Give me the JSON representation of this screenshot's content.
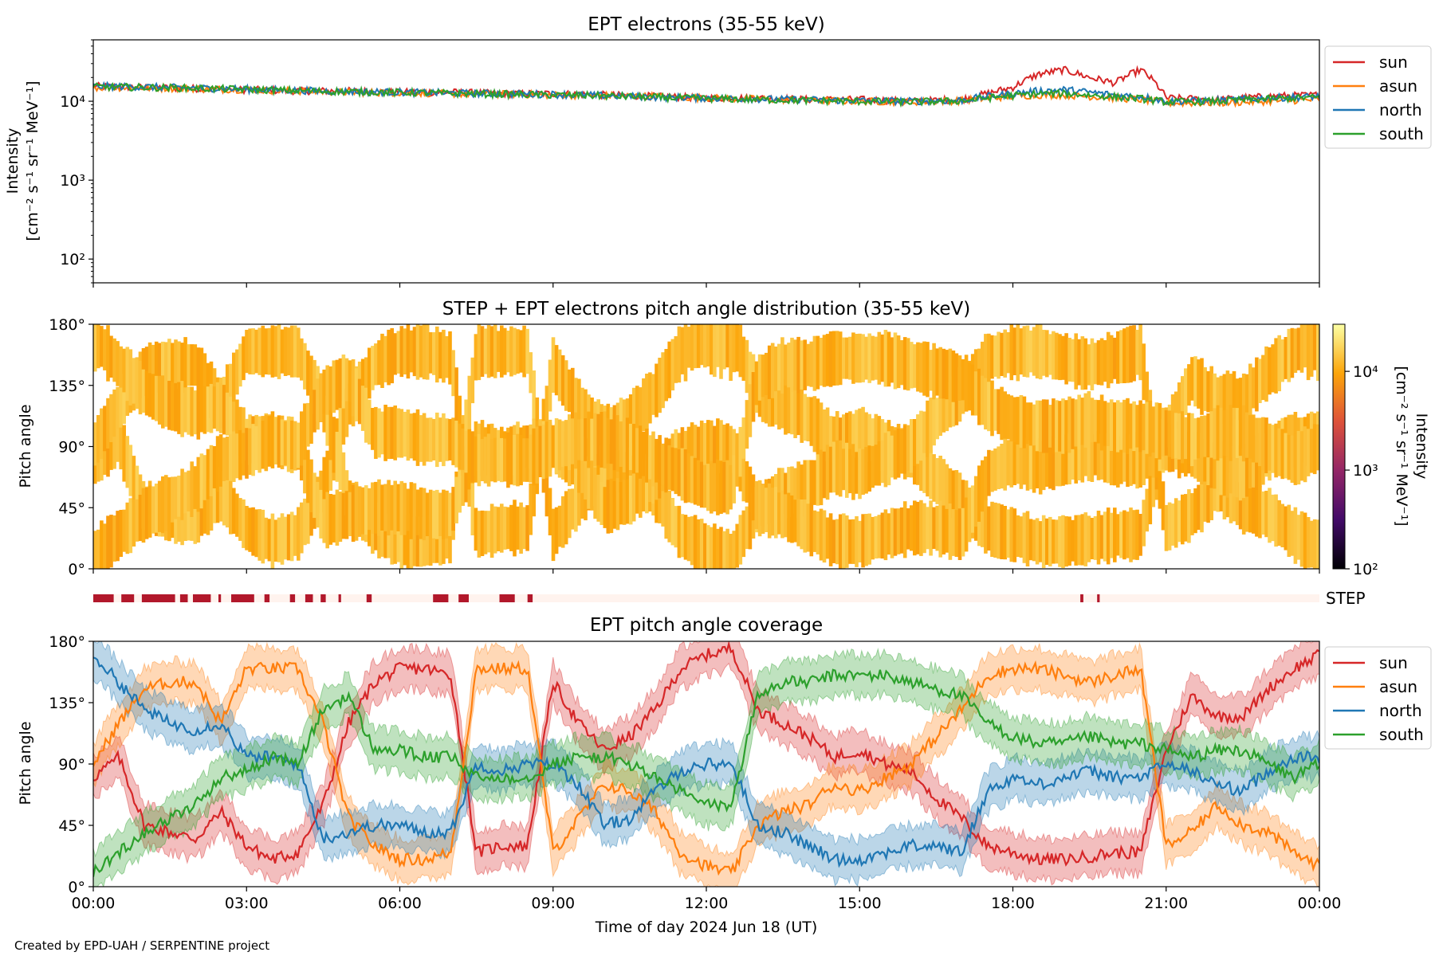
{
  "credit": "Created by EPD-UAH / SERPENTINE project",
  "legend_series": [
    {
      "name": "sun",
      "color": "#d62728"
    },
    {
      "name": "asun",
      "color": "#ff7f0e"
    },
    {
      "name": "north",
      "color": "#1f77b4"
    },
    {
      "name": "south",
      "color": "#2ca02c"
    }
  ],
  "chart_data": [
    {
      "type": "line",
      "title": "EPT electrons (35-55 keV)",
      "ylabel_line1": "Intensity",
      "ylabel_line2": "[cm⁻² s⁻¹ sr⁻¹ MeV⁻¹]",
      "yscale": "log",
      "ylim": [
        50,
        60000
      ],
      "yticks": [
        {
          "value": 100,
          "label": "10²"
        },
        {
          "value": 1000,
          "label": "10³"
        },
        {
          "value": 10000,
          "label": "10⁴"
        }
      ],
      "xlim_hours": [
        0,
        24
      ],
      "legend": "outside-right-top",
      "x_hours": [
        0,
        1,
        2,
        3,
        4,
        5,
        6,
        7,
        8,
        9,
        10,
        11,
        12,
        13,
        14,
        15,
        16,
        17,
        17.5,
        18,
        18.5,
        19,
        19.5,
        20,
        20.5,
        21,
        22,
        23,
        24
      ],
      "series": [
        {
          "name": "sun",
          "color": "#d62728",
          "values": [
            15500,
            15000,
            14500,
            14000,
            13500,
            13500,
            13000,
            13000,
            12500,
            12500,
            12000,
            11500,
            11000,
            11000,
            10500,
            10500,
            10000,
            10500,
            12500,
            15000,
            22000,
            25000,
            20000,
            17000,
            25000,
            11000,
            10500,
            11500,
            12000
          ]
        },
        {
          "name": "asun",
          "color": "#ff7f0e",
          "values": [
            15000,
            14800,
            14500,
            14000,
            13500,
            13000,
            12800,
            12500,
            12300,
            12000,
            11800,
            11500,
            11000,
            10700,
            10300,
            10000,
            9800,
            10200,
            11000,
            11500,
            12000,
            12000,
            11500,
            11000,
            10500,
            9500,
            9500,
            10000,
            10500
          ]
        },
        {
          "name": "north",
          "color": "#1f77b4",
          "values": [
            15500,
            15200,
            14700,
            14200,
            13700,
            13300,
            13000,
            12700,
            12400,
            12200,
            11800,
            11300,
            11000,
            10700,
            10400,
            10200,
            10000,
            10300,
            11500,
            12500,
            13500,
            14000,
            13000,
            12000,
            11500,
            10000,
            10200,
            11000,
            11500
          ]
        },
        {
          "name": "south",
          "color": "#2ca02c",
          "values": [
            15200,
            15000,
            14600,
            14100,
            13600,
            13200,
            12900,
            12600,
            12300,
            12000,
            11700,
            11200,
            10800,
            10500,
            10200,
            10000,
            9800,
            10100,
            11000,
            11800,
            12500,
            12500,
            12000,
            11300,
            10800,
            9800,
            10000,
            10700,
            11200
          ]
        }
      ]
    },
    {
      "type": "heatmap",
      "title": "STEP + EPT electrons pitch angle distribution (35-55 keV)",
      "ylabel": "Pitch angle",
      "ylim": [
        0,
        180
      ],
      "yticks": [
        "0°",
        "45°",
        "90°",
        "135°",
        "180°"
      ],
      "colorbar": {
        "label_line1": "Intensity",
        "label_line2": "[cm⁻² s⁻¹ sr⁻¹ MeV⁻¹]",
        "scale": "log",
        "range": [
          100,
          30000
        ],
        "ticks": [
          {
            "value": 100,
            "label": "10²"
          },
          {
            "value": 1000,
            "label": "10³"
          },
          {
            "value": 10000,
            "label": "10⁴"
          }
        ],
        "colors": [
          "#000004",
          "#420a68",
          "#932667",
          "#dd513a",
          "#fca50a",
          "#fcffa4"
        ]
      },
      "typical_intensity": 12000
    },
    {
      "type": "bar",
      "label": "STEP",
      "coverage_color": "#b2182b",
      "background_color": "#fff3ee",
      "intervals_hours": [
        [
          0.0,
          0.4
        ],
        [
          0.55,
          0.8
        ],
        [
          0.95,
          1.6
        ],
        [
          1.7,
          1.85
        ],
        [
          1.95,
          2.3
        ],
        [
          2.45,
          2.5
        ],
        [
          2.7,
          3.15
        ],
        [
          3.35,
          3.45
        ],
        [
          3.85,
          3.95
        ],
        [
          4.15,
          4.3
        ],
        [
          4.45,
          4.55
        ],
        [
          4.8,
          4.85
        ],
        [
          5.35,
          5.45
        ],
        [
          6.65,
          6.95
        ],
        [
          7.15,
          7.35
        ],
        [
          7.95,
          8.25
        ],
        [
          8.5,
          8.6
        ],
        [
          19.32,
          19.38
        ],
        [
          19.65,
          19.7
        ]
      ]
    },
    {
      "type": "line",
      "title": "EPT pitch angle coverage",
      "ylabel": "Pitch angle",
      "ylim": [
        0,
        180
      ],
      "yticks": [
        "0°",
        "45°",
        "90°",
        "135°",
        "180°"
      ],
      "xlabel": "Time of day 2024 Jun 18 (UT)",
      "xtick_labels": [
        "00:00",
        "03:00",
        "06:00",
        "09:00",
        "12:00",
        "15:00",
        "18:00",
        "21:00",
        "00:00"
      ],
      "xlim_hours": [
        0,
        24
      ],
      "legend": "outside-right-top",
      "band_halfwidth_deg": 15,
      "x_hours": [
        0,
        0.5,
        1,
        1.5,
        2,
        2.5,
        3,
        3.5,
        4,
        4.5,
        5,
        5.5,
        6,
        6.5,
        7,
        7.5,
        8,
        8.5,
        9,
        9.5,
        10,
        10.5,
        11,
        11.5,
        12,
        12.5,
        13,
        13.5,
        14,
        14.5,
        15,
        15.5,
        16,
        16.5,
        17,
        17.5,
        18,
        18.5,
        19,
        19.5,
        20,
        20.5,
        21,
        21.5,
        22,
        22.5,
        23,
        23.5,
        24
      ],
      "series": [
        {
          "name": "sun",
          "color": "#d62728",
          "values": [
            80,
            95,
            45,
            40,
            35,
            55,
            30,
            20,
            25,
            60,
            120,
            150,
            160,
            160,
            155,
            25,
            30,
            30,
            150,
            120,
            100,
            110,
            130,
            160,
            170,
            175,
            130,
            120,
            110,
            95,
            100,
            90,
            85,
            65,
            50,
            30,
            25,
            20,
            20,
            22,
            25,
            25,
            100,
            140,
            125,
            125,
            145,
            160,
            170
          ]
        },
        {
          "name": "asun",
          "color": "#ff7f0e",
          "values": [
            90,
            120,
            145,
            150,
            150,
            120,
            160,
            160,
            160,
            120,
            50,
            30,
            20,
            20,
            25,
            160,
            160,
            160,
            25,
            50,
            75,
            70,
            55,
            25,
            15,
            10,
            45,
            55,
            60,
            75,
            70,
            80,
            90,
            110,
            130,
            155,
            160,
            160,
            155,
            150,
            155,
            160,
            30,
            40,
            60,
            45,
            40,
            25,
            15
          ]
        },
        {
          "name": "north",
          "color": "#1f77b4",
          "values": [
            170,
            150,
            130,
            120,
            115,
            120,
            95,
            95,
            90,
            35,
            40,
            45,
            45,
            40,
            40,
            90,
            85,
            90,
            90,
            75,
            45,
            50,
            70,
            85,
            90,
            90,
            45,
            40,
            30,
            20,
            20,
            25,
            30,
            30,
            25,
            70,
            80,
            75,
            80,
            85,
            80,
            80,
            90,
            85,
            75,
            70,
            85,
            95,
            95
          ]
        },
        {
          "name": "south",
          "color": "#2ca02c",
          "values": [
            10,
            25,
            40,
            50,
            60,
            80,
            85,
            95,
            90,
            130,
            140,
            100,
            100,
            95,
            95,
            80,
            80,
            80,
            90,
            95,
            95,
            90,
            80,
            70,
            60,
            60,
            140,
            150,
            150,
            155,
            155,
            155,
            150,
            145,
            140,
            120,
            110,
            105,
            105,
            110,
            105,
            105,
            100,
            95,
            100,
            100,
            90,
            80,
            90
          ]
        }
      ]
    }
  ]
}
